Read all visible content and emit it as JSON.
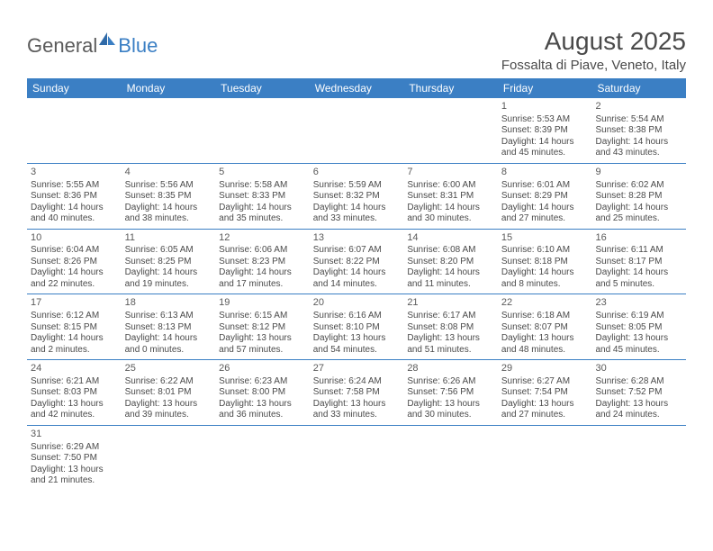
{
  "logo": {
    "text1": "General",
    "text2": "Blue"
  },
  "title": "August 2025",
  "location": "Fossalta di Piave, Veneto, Italy",
  "colors": {
    "header_bg": "#3b7fc4",
    "header_text": "#ffffff",
    "text": "#4a4a4a",
    "border": "#3b7fc4",
    "background": "#ffffff"
  },
  "dayNames": [
    "Sunday",
    "Monday",
    "Tuesday",
    "Wednesday",
    "Thursday",
    "Friday",
    "Saturday"
  ],
  "weeks": [
    [
      null,
      null,
      null,
      null,
      null,
      {
        "n": "1",
        "sr": "Sunrise: 5:53 AM",
        "ss": "Sunset: 8:39 PM",
        "d1": "Daylight: 14 hours",
        "d2": "and 45 minutes."
      },
      {
        "n": "2",
        "sr": "Sunrise: 5:54 AM",
        "ss": "Sunset: 8:38 PM",
        "d1": "Daylight: 14 hours",
        "d2": "and 43 minutes."
      }
    ],
    [
      {
        "n": "3",
        "sr": "Sunrise: 5:55 AM",
        "ss": "Sunset: 8:36 PM",
        "d1": "Daylight: 14 hours",
        "d2": "and 40 minutes."
      },
      {
        "n": "4",
        "sr": "Sunrise: 5:56 AM",
        "ss": "Sunset: 8:35 PM",
        "d1": "Daylight: 14 hours",
        "d2": "and 38 minutes."
      },
      {
        "n": "5",
        "sr": "Sunrise: 5:58 AM",
        "ss": "Sunset: 8:33 PM",
        "d1": "Daylight: 14 hours",
        "d2": "and 35 minutes."
      },
      {
        "n": "6",
        "sr": "Sunrise: 5:59 AM",
        "ss": "Sunset: 8:32 PM",
        "d1": "Daylight: 14 hours",
        "d2": "and 33 minutes."
      },
      {
        "n": "7",
        "sr": "Sunrise: 6:00 AM",
        "ss": "Sunset: 8:31 PM",
        "d1": "Daylight: 14 hours",
        "d2": "and 30 minutes."
      },
      {
        "n": "8",
        "sr": "Sunrise: 6:01 AM",
        "ss": "Sunset: 8:29 PM",
        "d1": "Daylight: 14 hours",
        "d2": "and 27 minutes."
      },
      {
        "n": "9",
        "sr": "Sunrise: 6:02 AM",
        "ss": "Sunset: 8:28 PM",
        "d1": "Daylight: 14 hours",
        "d2": "and 25 minutes."
      }
    ],
    [
      {
        "n": "10",
        "sr": "Sunrise: 6:04 AM",
        "ss": "Sunset: 8:26 PM",
        "d1": "Daylight: 14 hours",
        "d2": "and 22 minutes."
      },
      {
        "n": "11",
        "sr": "Sunrise: 6:05 AM",
        "ss": "Sunset: 8:25 PM",
        "d1": "Daylight: 14 hours",
        "d2": "and 19 minutes."
      },
      {
        "n": "12",
        "sr": "Sunrise: 6:06 AM",
        "ss": "Sunset: 8:23 PM",
        "d1": "Daylight: 14 hours",
        "d2": "and 17 minutes."
      },
      {
        "n": "13",
        "sr": "Sunrise: 6:07 AM",
        "ss": "Sunset: 8:22 PM",
        "d1": "Daylight: 14 hours",
        "d2": "and 14 minutes."
      },
      {
        "n": "14",
        "sr": "Sunrise: 6:08 AM",
        "ss": "Sunset: 8:20 PM",
        "d1": "Daylight: 14 hours",
        "d2": "and 11 minutes."
      },
      {
        "n": "15",
        "sr": "Sunrise: 6:10 AM",
        "ss": "Sunset: 8:18 PM",
        "d1": "Daylight: 14 hours",
        "d2": "and 8 minutes."
      },
      {
        "n": "16",
        "sr": "Sunrise: 6:11 AM",
        "ss": "Sunset: 8:17 PM",
        "d1": "Daylight: 14 hours",
        "d2": "and 5 minutes."
      }
    ],
    [
      {
        "n": "17",
        "sr": "Sunrise: 6:12 AM",
        "ss": "Sunset: 8:15 PM",
        "d1": "Daylight: 14 hours",
        "d2": "and 2 minutes."
      },
      {
        "n": "18",
        "sr": "Sunrise: 6:13 AM",
        "ss": "Sunset: 8:13 PM",
        "d1": "Daylight: 14 hours",
        "d2": "and 0 minutes."
      },
      {
        "n": "19",
        "sr": "Sunrise: 6:15 AM",
        "ss": "Sunset: 8:12 PM",
        "d1": "Daylight: 13 hours",
        "d2": "and 57 minutes."
      },
      {
        "n": "20",
        "sr": "Sunrise: 6:16 AM",
        "ss": "Sunset: 8:10 PM",
        "d1": "Daylight: 13 hours",
        "d2": "and 54 minutes."
      },
      {
        "n": "21",
        "sr": "Sunrise: 6:17 AM",
        "ss": "Sunset: 8:08 PM",
        "d1": "Daylight: 13 hours",
        "d2": "and 51 minutes."
      },
      {
        "n": "22",
        "sr": "Sunrise: 6:18 AM",
        "ss": "Sunset: 8:07 PM",
        "d1": "Daylight: 13 hours",
        "d2": "and 48 minutes."
      },
      {
        "n": "23",
        "sr": "Sunrise: 6:19 AM",
        "ss": "Sunset: 8:05 PM",
        "d1": "Daylight: 13 hours",
        "d2": "and 45 minutes."
      }
    ],
    [
      {
        "n": "24",
        "sr": "Sunrise: 6:21 AM",
        "ss": "Sunset: 8:03 PM",
        "d1": "Daylight: 13 hours",
        "d2": "and 42 minutes."
      },
      {
        "n": "25",
        "sr": "Sunrise: 6:22 AM",
        "ss": "Sunset: 8:01 PM",
        "d1": "Daylight: 13 hours",
        "d2": "and 39 minutes."
      },
      {
        "n": "26",
        "sr": "Sunrise: 6:23 AM",
        "ss": "Sunset: 8:00 PM",
        "d1": "Daylight: 13 hours",
        "d2": "and 36 minutes."
      },
      {
        "n": "27",
        "sr": "Sunrise: 6:24 AM",
        "ss": "Sunset: 7:58 PM",
        "d1": "Daylight: 13 hours",
        "d2": "and 33 minutes."
      },
      {
        "n": "28",
        "sr": "Sunrise: 6:26 AM",
        "ss": "Sunset: 7:56 PM",
        "d1": "Daylight: 13 hours",
        "d2": "and 30 minutes."
      },
      {
        "n": "29",
        "sr": "Sunrise: 6:27 AM",
        "ss": "Sunset: 7:54 PM",
        "d1": "Daylight: 13 hours",
        "d2": "and 27 minutes."
      },
      {
        "n": "30",
        "sr": "Sunrise: 6:28 AM",
        "ss": "Sunset: 7:52 PM",
        "d1": "Daylight: 13 hours",
        "d2": "and 24 minutes."
      }
    ],
    [
      {
        "n": "31",
        "sr": "Sunrise: 6:29 AM",
        "ss": "Sunset: 7:50 PM",
        "d1": "Daylight: 13 hours",
        "d2": "and 21 minutes."
      },
      null,
      null,
      null,
      null,
      null,
      null
    ]
  ]
}
